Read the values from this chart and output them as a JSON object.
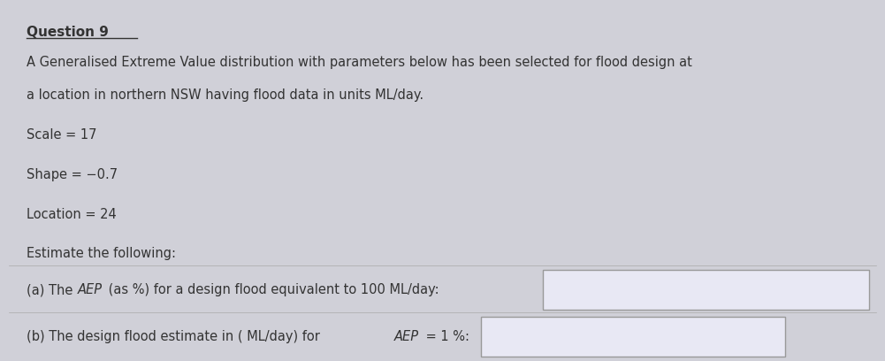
{
  "title": "Question 9",
  "background_color": "#d0d0d8",
  "answer_box_bg": "#e8e8f4",
  "para1": "A Generalised Extreme Value distribution with parameters below has been selected for flood design at",
  "para2": "a location in northern NSW having flood data in units ML/day.",
  "scale_label": "Scale = 17",
  "shape_label": "Shape = −0.7",
  "location_label": "Location = 24",
  "estimate_label": "Estimate the following:",
  "qa_part1": "(a) The ",
  "qa_italic": "AEP",
  "qa_part2": " (as %) for a design flood equivalent to 100 ML/day:",
  "qb_part1": "(b) The design flood estimate in ( ML/day) for ",
  "qb_italic": "AEP",
  "qb_part2": " = 1 %:",
  "title_fontsize": 11,
  "body_fontsize": 10.5,
  "text_color": "#333333"
}
